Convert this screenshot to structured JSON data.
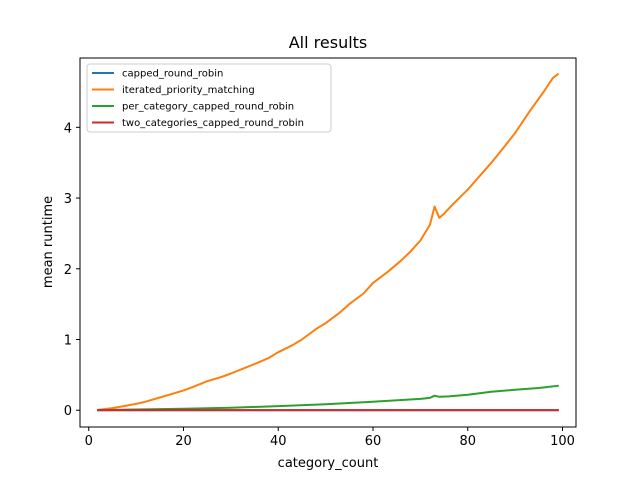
{
  "chart_data": {
    "type": "line",
    "title": "All results",
    "xlabel": "category_count",
    "ylabel": "mean runtime",
    "xlim": [
      -1.85,
      102.85
    ],
    "ylim": [
      -0.237,
      4.98
    ],
    "xticks": [
      0,
      20,
      40,
      60,
      80,
      100
    ],
    "yticks": [
      0,
      1,
      2,
      3,
      4
    ],
    "grid": false,
    "legend_position": "upper left",
    "series": [
      {
        "name": "capped_round_robin",
        "color": "#1f77b4",
        "x": [
          2,
          10,
          20,
          30,
          40,
          50,
          60,
          70,
          80,
          90,
          99
        ],
        "y": [
          0.001,
          0.001,
          0.001,
          0.001,
          0.001,
          0.001,
          0.001,
          0.001,
          0.001,
          0.001,
          0.001
        ]
      },
      {
        "name": "iterated_priority_matching",
        "color": "#ff7f0e",
        "x": [
          2,
          5,
          8,
          10,
          12,
          15,
          18,
          20,
          22,
          25,
          28,
          30,
          33,
          36,
          38,
          40,
          43,
          45,
          48,
          50,
          53,
          55,
          58,
          60,
          63,
          66,
          68,
          70,
          72,
          73,
          74,
          75,
          77,
          80,
          83,
          85,
          88,
          90,
          93,
          96,
          98,
          99
        ],
        "y": [
          0.005,
          0.03,
          0.065,
          0.09,
          0.12,
          0.18,
          0.24,
          0.28,
          0.33,
          0.41,
          0.47,
          0.52,
          0.6,
          0.68,
          0.74,
          0.82,
          0.92,
          1.0,
          1.15,
          1.23,
          1.38,
          1.5,
          1.65,
          1.8,
          1.95,
          2.12,
          2.25,
          2.4,
          2.62,
          2.88,
          2.72,
          2.78,
          2.92,
          3.12,
          3.35,
          3.5,
          3.75,
          3.92,
          4.22,
          4.5,
          4.7,
          4.75
        ]
      },
      {
        "name": "per_category_capped_round_robin",
        "color": "#2ca02c",
        "x": [
          2,
          10,
          20,
          30,
          40,
          50,
          60,
          70,
          72,
          73,
          74,
          76,
          80,
          85,
          90,
          95,
          99
        ],
        "y": [
          0.002,
          0.01,
          0.02,
          0.035,
          0.058,
          0.085,
          0.12,
          0.16,
          0.175,
          0.205,
          0.19,
          0.195,
          0.22,
          0.26,
          0.29,
          0.315,
          0.345
        ]
      },
      {
        "name": "two_categories_capped_round_robin",
        "color": "#d62728",
        "x": [
          2,
          10,
          20,
          30,
          40,
          50,
          60,
          70,
          80,
          90,
          99
        ],
        "y": [
          0.002,
          0.002,
          0.002,
          0.002,
          0.002,
          0.002,
          0.002,
          0.002,
          0.002,
          0.002,
          0.002
        ]
      }
    ]
  }
}
